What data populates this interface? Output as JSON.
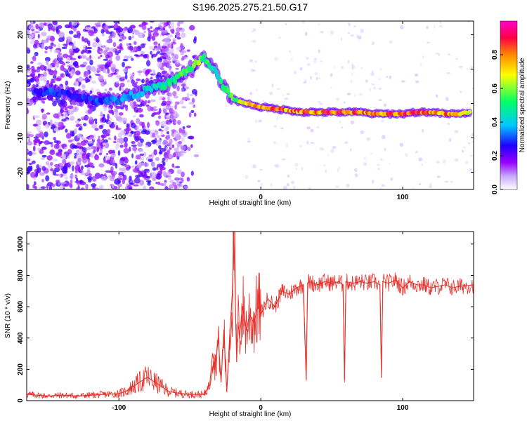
{
  "title": "S196.2025.275.21.50.G17",
  "chart_data": [
    {
      "type": "heatmap",
      "xlabel": "Height of straight line (km)",
      "ylabel": "Frequency (Hz)",
      "xlim": [
        -165,
        150
      ],
      "ylim": [
        -25,
        24
      ],
      "xticks": [
        -100,
        0,
        100
      ],
      "yticks": [
        -20,
        -10,
        0,
        10,
        20
      ],
      "grid": false,
      "colorbar": {
        "label": "Normalized spectral amplitude",
        "range": [
          0,
          1
        ],
        "ticks": [
          "0.0",
          "0.2",
          "0.4",
          "0.6",
          "0.8"
        ],
        "colors": [
          "#ffffff",
          "#c8a6ff",
          "#9900ff",
          "#1f00ff",
          "#00c8ff",
          "#00ff66",
          "#ffff00",
          "#ff8800",
          "#ff0044",
          "#ff00cc"
        ]
      },
      "ridge": {
        "x": [
          -160,
          -150,
          -140,
          -130,
          -120,
          -110,
          -100,
          -90,
          -80,
          -70,
          -60,
          -55,
          -50,
          -45,
          -40,
          -35,
          -30,
          -25,
          -20,
          -15,
          -10,
          -5,
          0,
          10,
          20,
          30,
          40,
          50,
          60,
          70,
          80,
          90,
          100,
          110,
          120,
          130,
          140,
          148
        ],
        "y": [
          3,
          3.5,
          3,
          2,
          1,
          1,
          1,
          2.5,
          4,
          5,
          7,
          9,
          10,
          12,
          13,
          11,
          8,
          4,
          1.5,
          0.5,
          0,
          -0.5,
          -1,
          -1.5,
          -2,
          -2.5,
          -2.5,
          -2.5,
          -2.5,
          -2.5,
          -3,
          -3,
          -3,
          -2.5,
          -2.5,
          -3,
          -3,
          -2.5
        ],
        "amplitude": [
          0.3,
          0.35,
          0.3,
          0.3,
          0.3,
          0.35,
          0.4,
          0.4,
          0.45,
          0.5,
          0.55,
          0.6,
          0.55,
          0.65,
          0.6,
          0.5,
          0.5,
          0.55,
          0.65,
          0.7,
          0.75,
          0.8,
          0.85,
          0.9,
          0.85,
          0.9,
          0.9,
          0.95,
          0.9,
          0.9,
          0.85,
          0.85,
          0.9,
          0.9,
          0.9,
          0.85,
          0.85,
          0.8
        ]
      }
    },
    {
      "type": "line",
      "xlabel": "Height of straight line (km)",
      "ylabel": "SNR (10 * v/v)",
      "xlim": [
        -165,
        150
      ],
      "ylim": [
        0,
        1080
      ],
      "xticks": [
        -100,
        0,
        100
      ],
      "yticks": [
        0,
        200,
        400,
        600,
        800,
        1000
      ],
      "grid": false,
      "line_color": "#e8302a",
      "series": [
        {
          "x": [
            -165,
            -150,
            -140,
            -130,
            -120,
            -110,
            -100,
            -95,
            -90,
            -85,
            -80,
            -75,
            -70,
            -65,
            -60,
            -55,
            -50,
            -45,
            -40,
            -36,
            -34,
            -32,
            -30,
            -28,
            -26,
            -24,
            -22,
            -20,
            -19,
            -18,
            -17,
            -16,
            -15,
            -13,
            -10,
            -8,
            -5,
            -2,
            0,
            5,
            10,
            15,
            20,
            25,
            30,
            32,
            33,
            34,
            40,
            45,
            50,
            55,
            58,
            59,
            60,
            65,
            70,
            75,
            80,
            84,
            85,
            86,
            90,
            95,
            100,
            105,
            110,
            115,
            120,
            125,
            130,
            135,
            140,
            145,
            150
          ],
          "y": [
            40,
            30,
            35,
            30,
            35,
            40,
            45,
            60,
            90,
            120,
            150,
            120,
            90,
            60,
            50,
            45,
            40,
            40,
            40,
            100,
            300,
            220,
            400,
            120,
            450,
            60,
            400,
            700,
            1080,
            650,
            250,
            500,
            400,
            600,
            450,
            550,
            500,
            600,
            550,
            650,
            600,
            700,
            680,
            720,
            740,
            140,
            750,
            760,
            740,
            760,
            750,
            760,
            740,
            140,
            760,
            750,
            760,
            750,
            760,
            740,
            150,
            760,
            750,
            770,
            720,
            760,
            740,
            740,
            720,
            730,
            740,
            720,
            730,
            735,
            740
          ]
        }
      ]
    }
  ]
}
